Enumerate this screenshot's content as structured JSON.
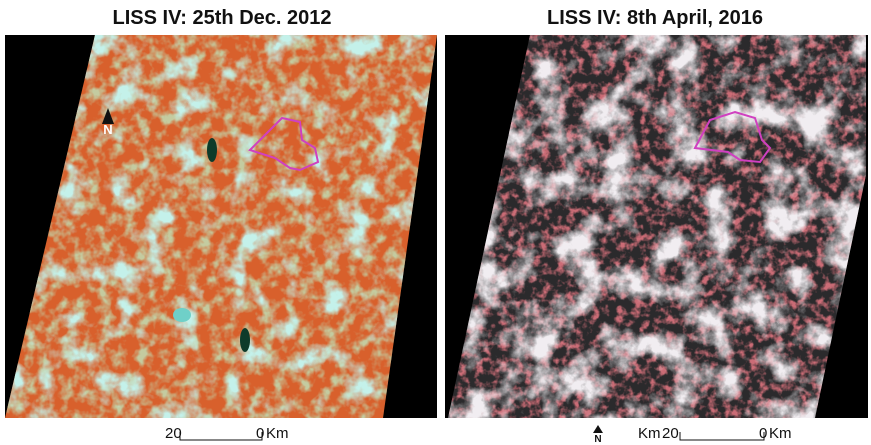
{
  "panels": [
    {
      "title": "LISS IV: 25th Dec. 2012",
      "north": "N",
      "scale": {
        "left": "20",
        "right": "0",
        "unit": "Km"
      }
    },
    {
      "title": "LISS IV: 8th April, 2016",
      "north": "N",
      "scale": {
        "unit_before": "Km",
        "left": "20",
        "right": "0",
        "unit": "Km"
      }
    }
  ]
}
